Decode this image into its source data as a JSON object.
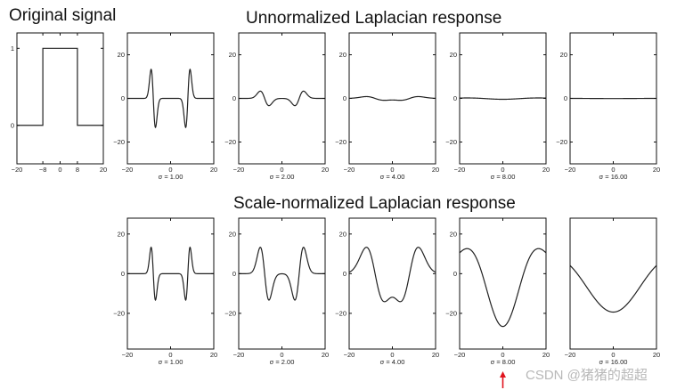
{
  "headings": {
    "original": "Original signal",
    "unnormalized": "Unnormalized Laplacian response",
    "normalized": "Scale-normalized Laplacian response"
  },
  "watermark": "CSDN @猪猪的超超",
  "colors": {
    "curve": "#222222",
    "arrow": "#e0141e"
  },
  "chart_data": [
    {
      "id": "original",
      "type": "line",
      "row": 0,
      "col": 0,
      "title": "Original signal",
      "curve": "box",
      "box_halfwidth": 8,
      "sigma": null,
      "sigma_label": "",
      "xlim": [
        -20,
        20
      ],
      "ylim": [
        -0.5,
        1.2
      ],
      "xticks": [
        -20,
        -8,
        0,
        8,
        20
      ],
      "xtick_labels": [
        "−20",
        "−8",
        "0",
        "8",
        "20"
      ],
      "yticks": [
        0,
        1
      ],
      "ytick_labels": [
        "0",
        "1"
      ]
    },
    {
      "id": "unnorm-1",
      "type": "line",
      "row": 0,
      "col": 1,
      "curve": "laplacian",
      "normalized": false,
      "sigma": 1,
      "sigma_label": "σ = 1.00",
      "xlim": [
        -20,
        20
      ],
      "ylim": [
        -30,
        30
      ],
      "xticks": [
        -20,
        0,
        20
      ],
      "xtick_labels": [
        "−20",
        "0",
        "20"
      ],
      "yticks": [
        20,
        0,
        -20
      ],
      "ytick_labels": [
        "20",
        "0",
        "−20"
      ]
    },
    {
      "id": "unnorm-2",
      "type": "line",
      "row": 0,
      "col": 2,
      "curve": "laplacian",
      "normalized": false,
      "sigma": 2,
      "sigma_label": "σ = 2.00",
      "xlim": [
        -20,
        20
      ],
      "ylim": [
        -30,
        30
      ],
      "xticks": [
        -20,
        0,
        20
      ],
      "xtick_labels": [
        "−20",
        "0",
        "20"
      ],
      "yticks": [
        20,
        0,
        -20
      ],
      "ytick_labels": [
        "20",
        "0",
        "−20"
      ]
    },
    {
      "id": "unnorm-4",
      "type": "line",
      "row": 0,
      "col": 3,
      "curve": "laplacian",
      "normalized": false,
      "sigma": 4,
      "sigma_label": "σ = 4.00",
      "xlim": [
        -20,
        20
      ],
      "ylim": [
        -30,
        30
      ],
      "xticks": [
        -20,
        0,
        20
      ],
      "xtick_labels": [
        "−20",
        "0",
        "20"
      ],
      "yticks": [
        20,
        0,
        -20
      ],
      "ytick_labels": [
        "20",
        "0",
        "−20"
      ]
    },
    {
      "id": "unnorm-8",
      "type": "line",
      "row": 0,
      "col": 4,
      "curve": "laplacian",
      "normalized": false,
      "sigma": 8,
      "sigma_label": "σ = 8.00",
      "xlim": [
        -20,
        20
      ],
      "ylim": [
        -30,
        30
      ],
      "xticks": [
        -20,
        0,
        20
      ],
      "xtick_labels": [
        "−20",
        "0",
        "20"
      ],
      "yticks": [
        20,
        0,
        -20
      ],
      "ytick_labels": [
        "20",
        "0",
        "−20"
      ]
    },
    {
      "id": "unnorm-16",
      "type": "line",
      "row": 0,
      "col": 5,
      "curve": "laplacian",
      "normalized": false,
      "sigma": 16,
      "sigma_label": "σ = 16.00",
      "xlim": [
        -20,
        20
      ],
      "ylim": [
        -30,
        30
      ],
      "xticks": [
        -20,
        0,
        20
      ],
      "xtick_labels": [
        "−20",
        "0",
        "20"
      ],
      "yticks": [
        20,
        0,
        -20
      ],
      "ytick_labels": [
        "20",
        "0",
        "−20"
      ]
    },
    {
      "id": "norm-1",
      "type": "line",
      "row": 1,
      "col": 1,
      "curve": "laplacian",
      "normalized": true,
      "sigma": 1,
      "sigma_label": "σ = 1.00",
      "xlim": [
        -20,
        20
      ],
      "ylim": [
        -38,
        28
      ],
      "xticks": [
        -20,
        0,
        20
      ],
      "xtick_labels": [
        "−20",
        "0",
        "20"
      ],
      "yticks": [
        20,
        0,
        -20
      ],
      "ytick_labels": [
        "20",
        "0",
        "−20"
      ]
    },
    {
      "id": "norm-2",
      "type": "line",
      "row": 1,
      "col": 2,
      "curve": "laplacian",
      "normalized": true,
      "sigma": 2,
      "sigma_label": "σ = 2.00",
      "xlim": [
        -20,
        20
      ],
      "ylim": [
        -38,
        28
      ],
      "xticks": [
        -20,
        0,
        20
      ],
      "xtick_labels": [
        "−20",
        "0",
        "20"
      ],
      "yticks": [
        20,
        0,
        -20
      ],
      "ytick_labels": [
        "20",
        "0",
        "−20"
      ]
    },
    {
      "id": "norm-4",
      "type": "line",
      "row": 1,
      "col": 3,
      "curve": "laplacian",
      "normalized": true,
      "sigma": 4,
      "sigma_label": "σ = 4.00",
      "xlim": [
        -20,
        20
      ],
      "ylim": [
        -38,
        28
      ],
      "xticks": [
        -20,
        0,
        20
      ],
      "xtick_labels": [
        "−20",
        "0",
        "20"
      ],
      "yticks": [
        20,
        0,
        -20
      ],
      "ytick_labels": [
        "20",
        "0",
        "−20"
      ]
    },
    {
      "id": "norm-8",
      "type": "line",
      "row": 1,
      "col": 4,
      "curve": "laplacian",
      "normalized": true,
      "sigma": 8,
      "sigma_label": "σ = 8.00",
      "xlim": [
        -20,
        20
      ],
      "ylim": [
        -38,
        28
      ],
      "xticks": [
        -20,
        0,
        20
      ],
      "xtick_labels": [
        "−20",
        "0",
        "20"
      ],
      "yticks": [
        20,
        0,
        -20
      ],
      "ytick_labels": [
        "20",
        "0",
        "−20"
      ],
      "annotation": "red arrow marks the strongest response"
    },
    {
      "id": "norm-16",
      "type": "line",
      "row": 1,
      "col": 5,
      "curve": "laplacian",
      "normalized": true,
      "sigma": 16,
      "sigma_label": "σ = 16.00",
      "xlim": [
        -20,
        20
      ],
      "ylim": [
        -38,
        28
      ],
      "xticks": [
        -20,
        0,
        20
      ],
      "xtick_labels": [
        "−20",
        "0",
        "20"
      ],
      "yticks": [],
      "ytick_labels": []
    }
  ]
}
